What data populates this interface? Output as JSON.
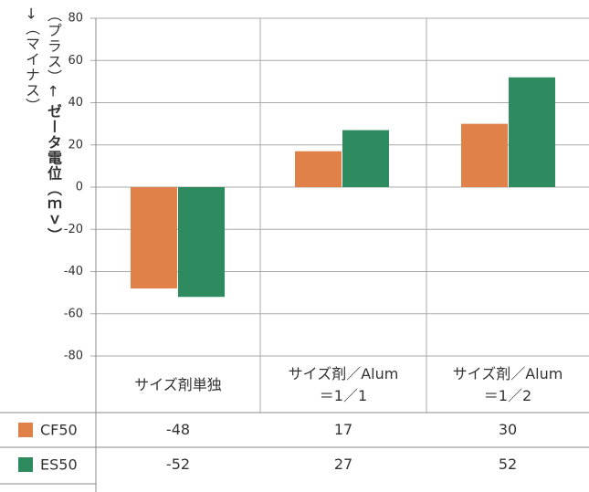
{
  "chart_data": {
    "type": "bar",
    "y_label_top": "（プラス）←",
    "y_label": "ゼータ電位（ｍｖ）",
    "y_label_bottom": "→（マイナス）",
    "categories": [
      "サイズ剤単独",
      "サイズ剤／Alum\n＝1／1",
      "サイズ剤／Alum\n＝1／2"
    ],
    "series": [
      {
        "name": "CF50",
        "color": "#e0814a",
        "values": [
          -48,
          17,
          30
        ]
      },
      {
        "name": "ES50",
        "color": "#2e8b5f",
        "values": [
          -52,
          27,
          52
        ]
      }
    ],
    "ylim": [
      -80,
      80
    ],
    "yticks": [
      -80,
      -60,
      -40,
      -20,
      0,
      20,
      40,
      60,
      80
    ],
    "grid": true
  }
}
